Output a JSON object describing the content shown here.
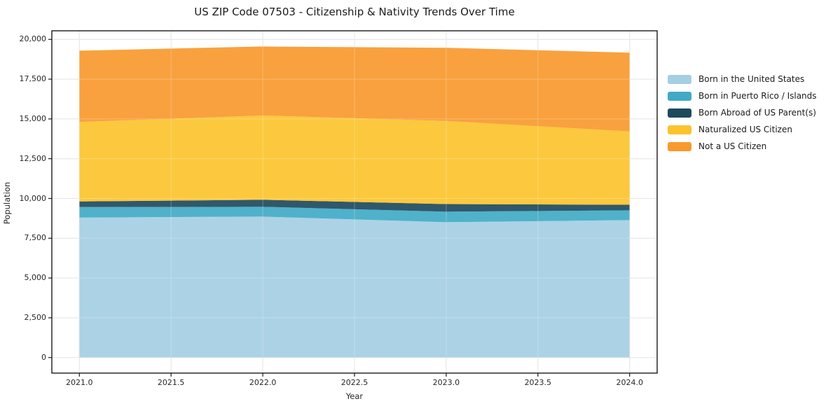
{
  "title": "US ZIP Code 07503 - Citizenship & Nativity Trends Over Time",
  "chart_data": {
    "type": "area",
    "stacked": true,
    "title": "US ZIP Code 07503 - Citizenship & Nativity Trends Over Time",
    "xlabel": "Year",
    "ylabel": "Population",
    "x": [
      2021,
      2022,
      2023,
      2024
    ],
    "series": [
      {
        "name": "Born in the United States",
        "color": "#a5cee4",
        "values": [
          8800,
          8860,
          8510,
          8640
        ]
      },
      {
        "name": "Born in Puerto Rico / Islands",
        "color": "#41aac6",
        "values": [
          660,
          615,
          660,
          615
        ]
      },
      {
        "name": "Born Abroad of US Parent(s)",
        "color": "#1e4a5e",
        "values": [
          350,
          440,
          480,
          350
        ]
      },
      {
        "name": "Naturalized US Citizen",
        "color": "#fcc32d",
        "values": [
          5000,
          5300,
          5220,
          4610
        ]
      },
      {
        "name": "Not a US Citizen",
        "color": "#f8992e",
        "values": [
          4480,
          4340,
          4600,
          4950
        ]
      }
    ],
    "stack_totals": [
      19290,
      19555,
      19470,
      19165
    ],
    "x_tick_labels": [
      "2021.0",
      "2021.5",
      "2022.0",
      "2022.5",
      "2023.0",
      "2023.5",
      "2024.0"
    ],
    "x_tick_values": [
      2021,
      2021.5,
      2022,
      2022.5,
      2023,
      2023.5,
      2024
    ],
    "y_tick_labels": [
      "0",
      "2,500",
      "5,000",
      "7,500",
      "10,000",
      "12,500",
      "15,000",
      "17,500",
      "20,000"
    ],
    "y_tick_values": [
      0,
      2500,
      5000,
      7500,
      10000,
      12500,
      15000,
      17500,
      20000
    ],
    "ylim": [
      0,
      20000
    ],
    "xlim": [
      2021,
      2024
    ],
    "grid": true,
    "legend_position": "right-outside"
  }
}
